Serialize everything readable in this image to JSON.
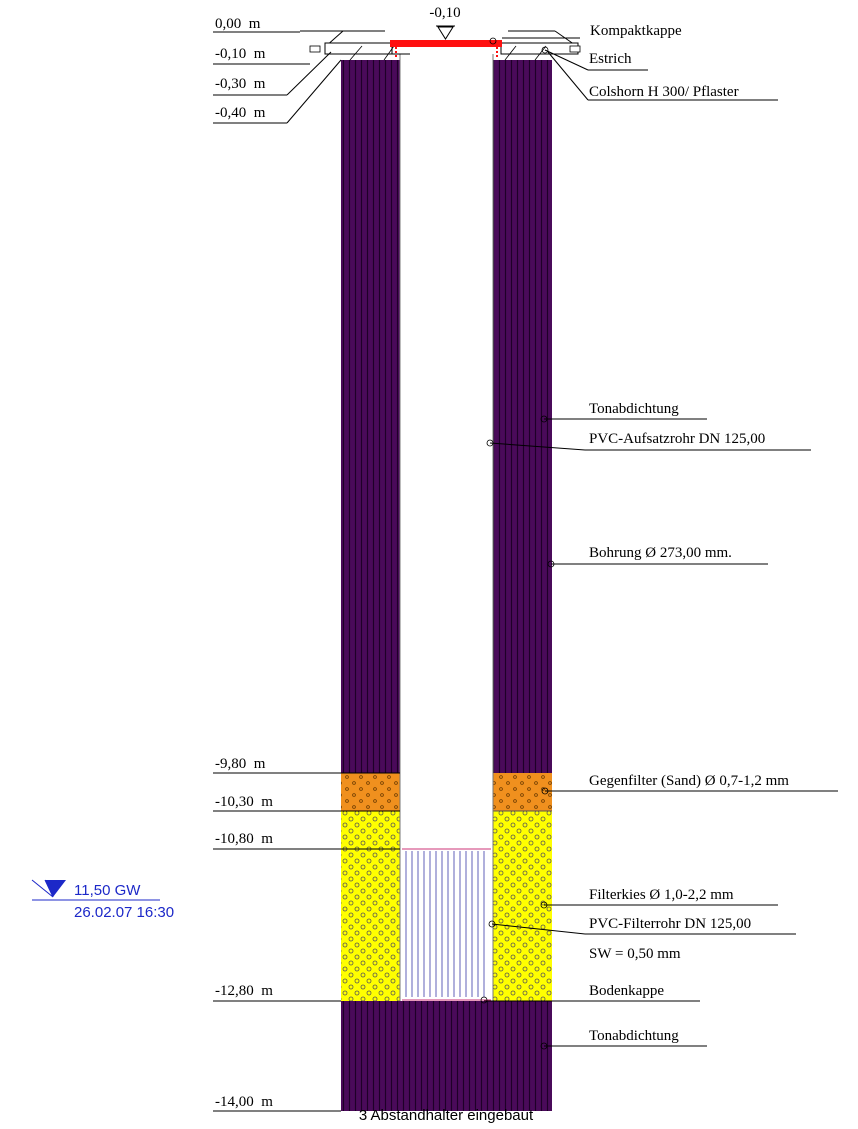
{
  "top_marker": {
    "label": "-0,10"
  },
  "depth_labels": [
    "0,00  m",
    "-0,10  m",
    "-0,30  m",
    "-0,40  m",
    "-9,80  m",
    "-10,30  m",
    "-10,80  m",
    "-12,80  m",
    "-14,00  m"
  ],
  "annotations": {
    "kompaktkappe": "Kompaktkappe",
    "estrich": "Estrich",
    "colshorn": "Colshorn H 300/ Pflaster",
    "tonabdichtung_top": "Tonabdichtung",
    "aufsatzrohr": "PVC-Aufsatzrohr DN 125,00",
    "bohrung": "Bohrung Ø 273,00 mm.",
    "gegenfilter": "Gegenfilter (Sand) Ø 0,7-1,2 mm",
    "filterkies": "Filterkies Ø 1,0-2,2 mm",
    "filterrohr": "PVC-Filterrohr DN 125,00",
    "slot_width": "SW = 0,50 mm",
    "bodenkappe": "Bodenkappe",
    "tonabdichtung_bottom": "Tonabdichtung"
  },
  "groundwater": {
    "level": "11,50 GW",
    "date": "26.02.07 16:30"
  },
  "footer_note": "3 Abstandhalter eingebaut",
  "colors": {
    "clay_seal": "#4a0a5a",
    "clay_stripe": "#1e0028",
    "sand_filter": "#f0901e",
    "gravel_filter": "#ffff00",
    "cap": "#ff1010",
    "groundwater": "#1c28c8"
  }
}
